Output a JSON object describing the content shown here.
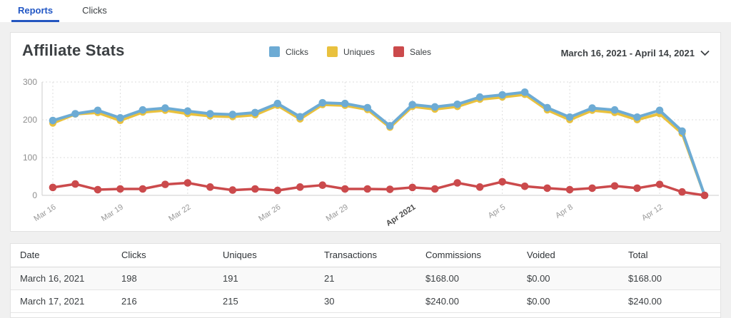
{
  "tabs": [
    {
      "label": "Reports",
      "active": true
    },
    {
      "label": "Clicks",
      "active": false
    }
  ],
  "header": {
    "title": "Affiliate Stats",
    "date_range": "March 16, 2021 - April 14, 2021"
  },
  "icons": {
    "date_range": "chevron-down"
  },
  "colors": {
    "clicks": "#6dabd4",
    "uniques": "#e9c13e",
    "sales": "#cb4a4c",
    "active_tab": "#2257c5",
    "grid": "#dddddd",
    "axis": "#cccccc",
    "tick_text": "#999999"
  },
  "chart_data": {
    "type": "line",
    "title": "Affiliate Stats",
    "x": [
      "Mar 16",
      "Mar 17",
      "Mar 18",
      "Mar 19",
      "Mar 20",
      "Mar 21",
      "Mar 22",
      "Mar 23",
      "Mar 24",
      "Mar 25",
      "Mar 26",
      "Mar 27",
      "Mar 28",
      "Mar 29",
      "Mar 30",
      "Mar 31",
      "Apr 1",
      "Apr 2",
      "Apr 3",
      "Apr 4",
      "Apr 5",
      "Apr 6",
      "Apr 7",
      "Apr 8",
      "Apr 9",
      "Apr 10",
      "Apr 11",
      "Apr 12",
      "Apr 13",
      "Apr 14"
    ],
    "series": [
      {
        "name": "Clicks",
        "color": "#6dabd4",
        "values": [
          198,
          216,
          225,
          205,
          226,
          231,
          223,
          216,
          214,
          219,
          243,
          208,
          245,
          243,
          232,
          184,
          240,
          234,
          241,
          260,
          266,
          273,
          232,
          207,
          231,
          226,
          207,
          225,
          170,
          0
        ]
      },
      {
        "name": "Uniques",
        "color": "#e9c13e",
        "values": [
          191,
          215,
          219,
          198,
          220,
          225,
          216,
          210,
          208,
          213,
          238,
          202,
          240,
          238,
          227,
          180,
          235,
          228,
          235,
          254,
          260,
          267,
          226,
          200,
          225,
          219,
          200,
          216,
          164,
          0
        ]
      },
      {
        "name": "Sales",
        "color": "#cb4a4c",
        "values": [
          21,
          30,
          15,
          17,
          17,
          29,
          33,
          22,
          14,
          17,
          13,
          22,
          27,
          17,
          17,
          16,
          21,
          17,
          33,
          22,
          36,
          24,
          19,
          15,
          19,
          25,
          19,
          29,
          9,
          0
        ]
      }
    ],
    "ylim": [
      0,
      300
    ],
    "yticks": [
      0,
      100,
      200,
      300
    ],
    "xticks": [
      {
        "index": 0,
        "label": "Mar 16"
      },
      {
        "index": 3,
        "label": "Mar 19"
      },
      {
        "index": 6,
        "label": "Mar 22"
      },
      {
        "index": 10,
        "label": "Mar 26"
      },
      {
        "index": 13,
        "label": "Mar 29"
      },
      {
        "index": 16,
        "label": "Apr 2021",
        "bold": true
      },
      {
        "index": 20,
        "label": "Apr 5"
      },
      {
        "index": 23,
        "label": "Apr 8"
      },
      {
        "index": 27,
        "label": "Apr 12"
      }
    ],
    "grid": "dotted",
    "legend_position": "top-center"
  },
  "table": {
    "columns": [
      "Date",
      "Clicks",
      "Uniques",
      "Transactions",
      "Commissions",
      "Voided",
      "Total"
    ],
    "rows": [
      [
        "March 16, 2021",
        "198",
        "191",
        "21",
        "$168.00",
        "$0.00",
        "$168.00"
      ],
      [
        "March 17, 2021",
        "216",
        "215",
        "30",
        "$240.00",
        "$0.00",
        "$240.00"
      ]
    ]
  }
}
